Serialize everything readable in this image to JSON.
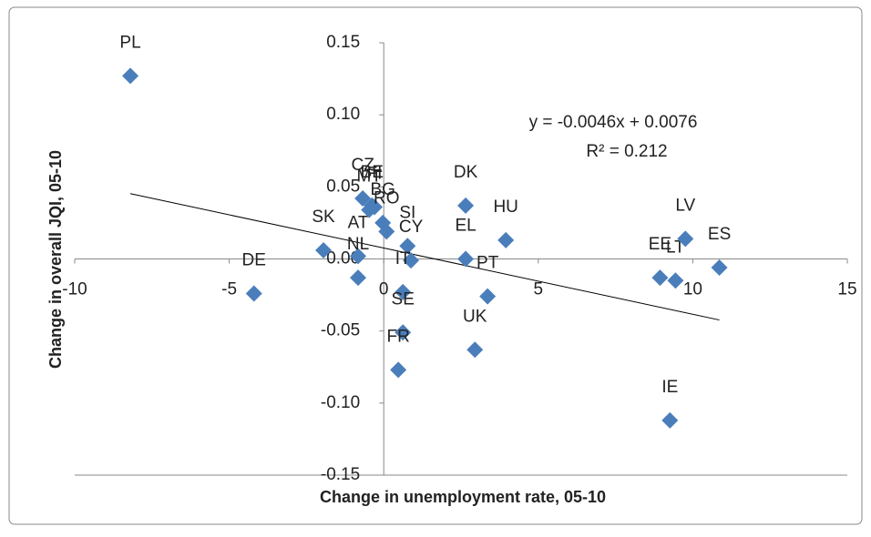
{
  "chart_data": {
    "type": "scatter",
    "x_label": "Change in unemployment rate, 05-10",
    "y_label": "Change in overall JQI, 05-10",
    "color": "#4a7ebb",
    "point_labels": [
      "PL",
      "DE",
      "SK",
      "AT",
      "NL",
      "CZ",
      "MT",
      "BE",
      "FI",
      "BG",
      "RO",
      "SI",
      "CY",
      "IT",
      "SE",
      "FR",
      "DK",
      "EL",
      "HU",
      "PT",
      "UK",
      "EE",
      "LT",
      "LV",
      "ES",
      "IE"
    ],
    "x": [
      -8.2,
      -4.2,
      -1.95,
      -0.83,
      -0.83,
      -0.68,
      -0.47,
      -0.38,
      -0.3,
      -0.03,
      0.09,
      0.77,
      0.88,
      0.62,
      0.62,
      0.47,
      2.65,
      2.65,
      3.95,
      3.36,
      2.95,
      8.94,
      9.44,
      9.76,
      10.86,
      9.26
    ],
    "y": [
      0.127,
      -0.024,
      0.006,
      0.002,
      -0.013,
      0.042,
      0.034,
      0.037,
      0.036,
      0.025,
      0.019,
      0.009,
      -0.001,
      -0.023,
      -0.051,
      -0.077,
      0.037,
      0.0,
      0.013,
      -0.026,
      -0.063,
      -0.013,
      -0.015,
      0.014,
      -0.006,
      -0.112
    ],
    "trendline": {
      "slope": -0.0046,
      "intercept": 0.0076,
      "equation": "y = -0.0046x + 0.0076",
      "r2": "R² = 0.212"
    },
    "xlim": [
      -10,
      15
    ],
    "xticks": [
      -10,
      -5,
      0,
      5,
      10,
      15
    ],
    "ylim": [
      -0.15,
      0.15
    ],
    "yticks": [
      {
        "value": 0.15,
        "label": "0.15"
      },
      {
        "value": 0.1,
        "label": "0.10"
      },
      {
        "value": 0.05,
        "label": "0.05"
      },
      {
        "value": 0,
        "label": "0.00"
      },
      {
        "value": -0.05,
        "label": "-0.05"
      },
      {
        "value": -0.1,
        "label": "-0.10"
      },
      {
        "value": -0.15,
        "label": "-0.15"
      }
    ]
  }
}
